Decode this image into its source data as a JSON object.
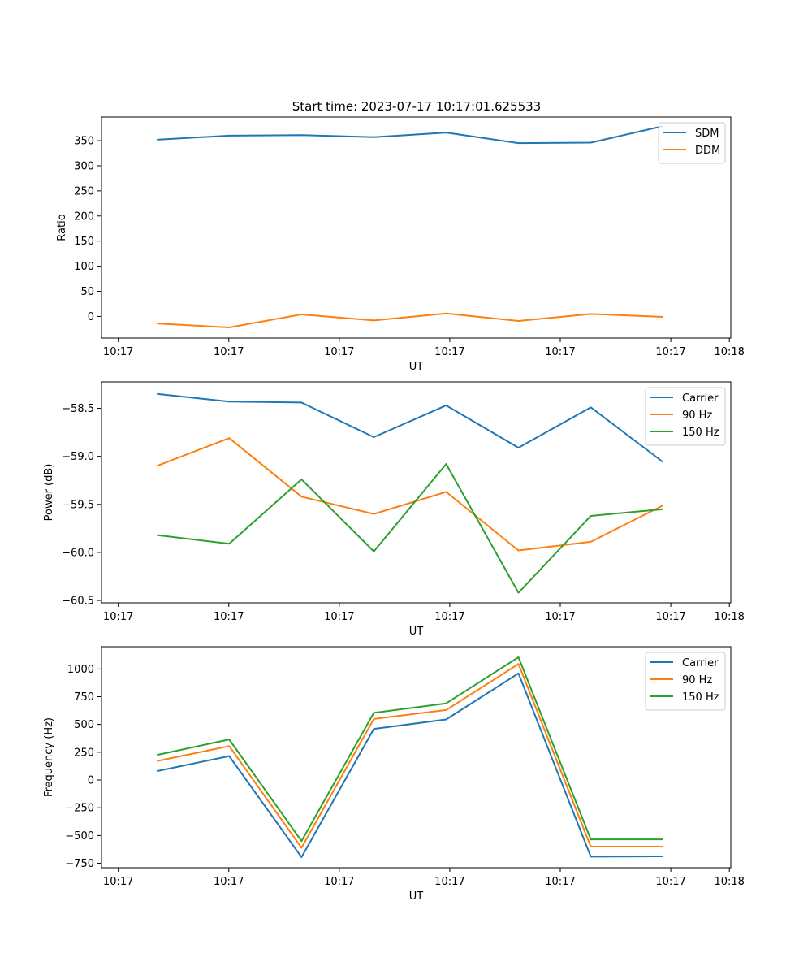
{
  "title": "Start time: 2023-07-17 10:17:01.625533",
  "colors": {
    "blue": "#1f77b4",
    "orange": "#ff7f0e",
    "green": "#2ca02c"
  },
  "chart_data": [
    {
      "type": "line",
      "title": "Start time: 2023-07-17 10:17:01.625533",
      "xlabel": "UT",
      "ylabel": "Ratio",
      "x": [
        1,
        2,
        3,
        4,
        5,
        6,
        7,
        8
      ],
      "xlim": [
        0.234,
        8.936
      ],
      "xticks": [
        0.466,
        1.994,
        3.522,
        5.05,
        6.578,
        8.106,
        8.916
      ],
      "xtick_labels": [
        "10:17",
        "10:17",
        "10:17",
        "10:17",
        "10:17",
        "10:17",
        "10:18"
      ],
      "ylim": [
        -43,
        397
      ],
      "yticks": [
        0,
        50,
        100,
        150,
        200,
        250,
        300,
        350
      ],
      "ytick_labels": [
        "0",
        "50",
        "100",
        "150",
        "200",
        "250",
        "300",
        "350"
      ],
      "legend": "top-right",
      "grid": false,
      "series": [
        {
          "name": "SDM",
          "color": "#1f77b4",
          "values": [
            352,
            360,
            361,
            357,
            366,
            345,
            346,
            379
          ]
        },
        {
          "name": "DDM",
          "color": "#ff7f0e",
          "values": [
            -14,
            -22,
            4,
            -8,
            6,
            -9,
            5,
            -1
          ]
        }
      ]
    },
    {
      "type": "line",
      "title": "",
      "xlabel": "UT",
      "ylabel": "Power (dB)",
      "x": [
        1,
        2,
        3,
        4,
        5,
        6,
        7,
        8
      ],
      "xlim": [
        0.234,
        8.936
      ],
      "xticks": [
        0.466,
        1.994,
        3.522,
        5.05,
        6.578,
        8.106,
        8.916
      ],
      "xtick_labels": [
        "10:17",
        "10:17",
        "10:17",
        "10:17",
        "10:17",
        "10:17",
        "10:18"
      ],
      "ylim": [
        -60.525,
        -58.225
      ],
      "yticks": [
        -60.5,
        -60.0,
        -59.5,
        -59.0,
        -58.5
      ],
      "ytick_labels": [
        "−60.5",
        "−60.0",
        "−59.5",
        "−59.0",
        "−58.5"
      ],
      "legend": "top-right",
      "grid": false,
      "series": [
        {
          "name": "Carrier",
          "color": "#1f77b4",
          "values": [
            -58.35,
            -58.43,
            -58.44,
            -58.8,
            -58.47,
            -58.91,
            -58.49,
            -59.06
          ]
        },
        {
          "name": "90 Hz",
          "color": "#ff7f0e",
          "values": [
            -59.1,
            -58.81,
            -59.42,
            -59.6,
            -59.37,
            -59.98,
            -59.89,
            -59.51
          ]
        },
        {
          "name": "150 Hz",
          "color": "#2ca02c",
          "values": [
            -59.82,
            -59.91,
            -59.24,
            -59.99,
            -59.08,
            -60.42,
            -59.62,
            -59.55
          ]
        }
      ]
    },
    {
      "type": "line",
      "title": "",
      "xlabel": "UT",
      "ylabel": "Frequency (Hz)",
      "x": [
        1,
        2,
        3,
        4,
        5,
        6,
        7,
        8
      ],
      "xlim": [
        0.234,
        8.936
      ],
      "xticks": [
        0.466,
        1.994,
        3.522,
        5.05,
        6.578,
        8.106,
        8.916
      ],
      "xtick_labels": [
        "10:17",
        "10:17",
        "10:17",
        "10:17",
        "10:17",
        "10:17",
        "10:18"
      ],
      "ylim": [
        -790,
        1200
      ],
      "yticks": [
        -750,
        -500,
        -250,
        0,
        250,
        500,
        750,
        1000
      ],
      "ytick_labels": [
        "−750",
        "−500",
        "−250",
        "0",
        "250",
        "500",
        "750",
        "1000"
      ],
      "legend": "top-right",
      "grid": false,
      "series": [
        {
          "name": "Carrier",
          "color": "#1f77b4",
          "values": [
            80,
            215,
            -695,
            460,
            545,
            960,
            -690,
            -688
          ]
        },
        {
          "name": "90 Hz",
          "color": "#ff7f0e",
          "values": [
            170,
            305,
            -610,
            550,
            630,
            1045,
            -600,
            -600
          ]
        },
        {
          "name": "150 Hz",
          "color": "#2ca02c",
          "values": [
            225,
            365,
            -550,
            605,
            690,
            1105,
            -535,
            -535
          ]
        }
      ]
    }
  ]
}
